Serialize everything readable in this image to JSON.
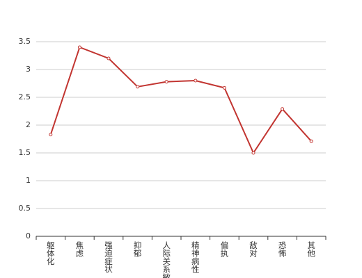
{
  "chart_data": {
    "type": "line",
    "categories": [
      "躯体化",
      "焦虑",
      "强迫症状",
      "抑郁",
      "人际关系敏感",
      "精神病性",
      "偏执",
      "敌对",
      "恐怖",
      "其他"
    ],
    "values": [
      1.83,
      3.4,
      3.2,
      2.69,
      2.78,
      2.8,
      2.67,
      1.5,
      2.29,
      1.71
    ],
    "color": "#c23531",
    "ylim": [
      0,
      3.5
    ],
    "yticks": [
      0,
      0.5,
      1,
      1.5,
      2,
      2.5,
      3,
      3.5
    ],
    "grid": true
  }
}
